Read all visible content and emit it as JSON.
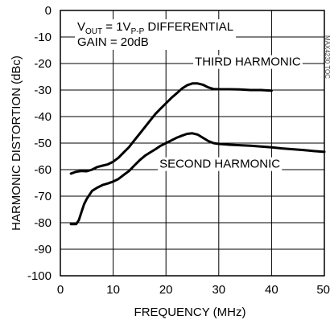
{
  "chart_data": {
    "type": "line",
    "title": "",
    "xlabel": "FREQUENCY (MHz)",
    "ylabel": "HARMONIC DISTORTION (dBc)",
    "xlim": [
      0,
      50
    ],
    "ylim": [
      -100,
      0
    ],
    "x_ticks": [
      0,
      10,
      20,
      30,
      40,
      50
    ],
    "y_ticks": [
      0,
      -10,
      -20,
      -30,
      -40,
      -50,
      -60,
      -70,
      -80,
      -90,
      -100
    ],
    "grid": true,
    "legend": "none",
    "conditions": {
      "vout_prefix": "V",
      "vout_sub": "OUT",
      "vout_mid": " = 1V",
      "vout_unit_sub": "P-P",
      "vout_suffix": " DIFFERENTIAL",
      "gain": "GAIN = 20dB"
    },
    "figure_code": "MAX4230 TOC",
    "series": [
      {
        "name": "THIRD HARMONIC",
        "x": [
          2,
          3,
          4,
          5,
          6,
          7,
          8,
          9,
          10,
          11,
          12,
          13,
          14,
          15,
          16,
          17,
          18,
          19,
          20,
          21,
          22,
          23,
          24,
          25,
          26,
          27,
          28,
          29,
          30,
          32,
          34,
          36,
          38,
          40
        ],
        "y": [
          -61.5,
          -60.8,
          -60.5,
          -60.6,
          -60.0,
          -59.0,
          -58.5,
          -58.0,
          -57.0,
          -55.5,
          -53.5,
          -51.5,
          -49.0,
          -46.5,
          -44.0,
          -41.5,
          -39.0,
          -37.0,
          -35.0,
          -33.0,
          -31.3,
          -29.5,
          -28.2,
          -27.5,
          -27.5,
          -28.0,
          -29.0,
          -29.6,
          -29.7,
          -29.7,
          -29.8,
          -30.0,
          -30.0,
          -30.2
        ]
      },
      {
        "name": "SECOND HARMONIC",
        "x": [
          2,
          3,
          3.5,
          4,
          4.5,
          5,
          6,
          7,
          8,
          9,
          10,
          11,
          12,
          13,
          14,
          15,
          16,
          17,
          18,
          19,
          20,
          21,
          22,
          23,
          24,
          25,
          26,
          27,
          28,
          29,
          30,
          32,
          34,
          36,
          38,
          40,
          42,
          44,
          46,
          48,
          50
        ],
        "y": [
          -80.5,
          -80.5,
          -79.0,
          -76.0,
          -73.0,
          -71.0,
          -68.0,
          -66.8,
          -65.8,
          -65.2,
          -64.5,
          -63.5,
          -62.0,
          -60.5,
          -58.5,
          -56.5,
          -54.8,
          -53.5,
          -52.3,
          -51.0,
          -50.0,
          -49.0,
          -48.0,
          -47.2,
          -46.5,
          -46.3,
          -46.8,
          -48.0,
          -49.2,
          -50.0,
          -50.3,
          -50.6,
          -50.8,
          -51.0,
          -51.3,
          -51.6,
          -52.0,
          -52.3,
          -52.6,
          -53.0,
          -53.3
        ]
      }
    ],
    "annotations": [
      {
        "text": "THIRD HARMONIC",
        "anchor": "above third harmonic plateau"
      },
      {
        "text": "SECOND HARMONIC",
        "anchor": "below second harmonic tail"
      }
    ]
  }
}
